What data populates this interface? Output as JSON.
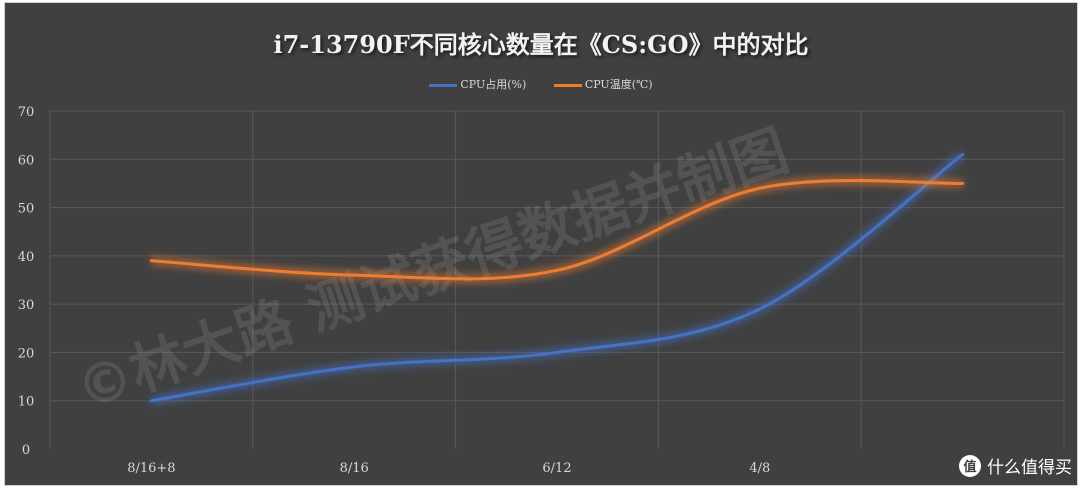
{
  "chart_data": {
    "type": "line",
    "title": "i7-13790F不同核心数量在《CS:GO》中的对比",
    "categories": [
      "8/16+8",
      "8/16",
      "6/12",
      "4/8",
      ""
    ],
    "series": [
      {
        "name": "CPU占用(%)",
        "values": [
          10,
          17,
          20,
          29,
          61
        ],
        "color": "#4472c4"
      },
      {
        "name": "CPU温度(℃)",
        "values": [
          39,
          36,
          37,
          54,
          55
        ],
        "color": "#ed7d31"
      }
    ],
    "ylim": [
      0,
      70
    ],
    "yticks": [
      0,
      10,
      20,
      30,
      40,
      50,
      60,
      70
    ],
    "grid": true,
    "smooth": true,
    "legend": "top",
    "background": "#404040"
  },
  "watermark": "©林大路 测试获得数据并制图",
  "logo": {
    "icon": "值",
    "text": "什么值得买"
  }
}
